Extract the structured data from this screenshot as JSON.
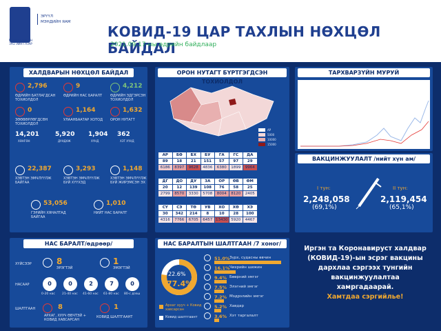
{
  "header": {
    "org1": "МОНГОЛ УЛСЫН",
    "org2": "ЗАСГИЙН ГАЗАР",
    "ministry1": "ЭРҮҮЛ",
    "ministry2": "МЭНДИЙН ЯАМ",
    "title": "КОВИД-19 ЦАР ТАХЛЫН НӨХЦӨЛ БАЙДАЛ",
    "subtitle": "2021.09.17-ны өдрийн байдлаар"
  },
  "infection": {
    "title": "ХАЛДВАРЫН НӨХЦӨЛ БАЙДАЛ",
    "stats": [
      {
        "value": "2,796",
        "label": "ӨДРИЙН БАТЛАГДСАН ТОХИОЛДОЛ",
        "color": "#f0a830"
      },
      {
        "value": "9",
        "label": "ӨДРИЙН НАС БАРАЛТ",
        "color": "#f0a830"
      },
      {
        "value": "4,212",
        "label": "ӨДРИЙН ЭДГЭРСЭН ТОХИОЛДОЛ",
        "color": "#7ec47a"
      },
      {
        "value": "0",
        "label": "ЗӨӨВӨРЛӨГДСӨН ТОХИОЛДОЛ",
        "color": "#f0a830"
      },
      {
        "value": "1,164",
        "label": "УЛААНБААТАР ХОТОД",
        "color": "#f0a830"
      },
      {
        "value": "1,632",
        "label": "ОРОН НУТАГТ",
        "color": "#f0a830"
      }
    ],
    "row2": [
      {
        "value": "14,201",
        "label": "ХӨНГӨН"
      },
      {
        "value": "5,920",
        "label": "ДУНДАЖ"
      },
      {
        "value": "1,904",
        "label": "ХҮНД"
      },
      {
        "value": "362",
        "label": "ХЭТ ХҮНД"
      }
    ],
    "stats2": [
      {
        "value": "22,387",
        "label": "ХЭВТЭН ЭМЧЛҮҮЛЖ БАЙГАА"
      },
      {
        "value": "3,293",
        "label": "ХЭВТЭН ЭМЧЛҮҮЛЖ БУЙ ХҮҮХЭД"
      },
      {
        "value": "1,148",
        "label": "ХЭВТЭН ЭМЧЛҮҮЛЖ БУЙ ЖИРЭМСЭН ЭХ"
      },
      {
        "value": "53,056",
        "label": "ГЭРИЙН ХЯНАЛТАД БАЙГАА"
      },
      {
        "value": "1,010",
        "label": "НИЙТ НАС БАРАЛТ"
      }
    ]
  },
  "map": {
    "title": "ОРОН НУТАГТ БҮРТГЭГДСЭН ТОХИОЛДОЛ",
    "legend": [
      "АР",
      "5000",
      "10000",
      "15000"
    ],
    "rows": [
      {
        "codes": [
          "АР",
          "БӨ",
          "БХ",
          "БУ",
          "ГА",
          "ГС",
          "ДА"
        ],
        "daily": [
          "89",
          "18",
          "21",
          "151",
          "57",
          "97",
          "29"
        ],
        "total": [
          "6186",
          "8397",
          "9628",
          "4836",
          "6380",
          "1899",
          "9964"
        ]
      },
      {
        "codes": [
          "ДГ",
          "ДО",
          "ДУ",
          "ЗА",
          "ОР",
          "ӨВ",
          "ӨМ"
        ],
        "daily": [
          "20",
          "12",
          "139",
          "108",
          "76",
          "58",
          "25"
        ],
        "total": [
          "2799",
          "8570",
          "3330",
          "5708",
          "8004",
          "8120",
          "2405"
        ]
      },
      {
        "codes": [
          "СҮ",
          "СЭ",
          "ТӨ",
          "УВ",
          "ХО",
          "ХӨ",
          "ХЭ"
        ],
        "daily": [
          "30",
          "342",
          "214",
          "8",
          "10",
          "28",
          "100"
        ],
        "total": [
          "4316",
          "7766",
          "6705",
          "6457",
          "13430",
          "5920",
          "4467"
        ]
      }
    ]
  },
  "curve": {
    "title": "ТАРХВАРЗҮЙН МУРУЙ"
  },
  "vaccine": {
    "title": "ВАКЦИНЖУУЛАЛТ /нийт хүн ам/",
    "dose1_label": "I тун:",
    "dose1_value": "2,248,058",
    "dose1_pct": "(69,1%)",
    "dose2_label": "II тун:",
    "dose2_value": "2,119,454",
    "dose2_pct": "(65,1%)"
  },
  "deaths": {
    "title": "НАС БАРАЛТ/өдрөөр/",
    "male_label": "ХҮЙСЭЭР",
    "male_value": "8",
    "male_text": "ЭРЭГТЭЙ",
    "female_value": "1",
    "female_text": "ЭМЭГТЭЙ",
    "age_label": "НАСААР",
    "ages": [
      {
        "value": "0",
        "label": "0-20 нас"
      },
      {
        "value": "0",
        "label": "21-40 нас"
      },
      {
        "value": "2",
        "label": "41-60 нас"
      },
      {
        "value": "7",
        "label": "61-80 нас"
      },
      {
        "value": "0",
        "label": "80-с дээш"
      }
    ],
    "cause_label": "ШАЛТГААН",
    "cause1_value": "8",
    "cause1_text": "АРХАГ, ХУУЧ ӨВЧТЭЙ + КОВИД ХАВСАРСАН",
    "cause2_value": "1",
    "cause2_text": "КОВИД ШАЛТГААНТ"
  },
  "causes": {
    "title": "НАС БАРАЛТЫН ШАЛТГААН /7 хоног/",
    "pct_covid": "22.6%",
    "pct_chronic": "77.4%",
    "legend1": "Архаг хууч + Ковид хавсарсан",
    "legend2": "Ковид шалтгаант",
    "items": [
      {
        "pct": "51.0%",
        "label": "Зүрх, судасны өвчин",
        "v": 51
      },
      {
        "pct": "16.1%",
        "label": "Чихрийн шижин",
        "v": 16.1
      },
      {
        "pct": "9.4%",
        "label": "Бөөрний эмгэг",
        "v": 9.4
      },
      {
        "pct": "7.5%",
        "label": "Элэгний эмгэг",
        "v": 7.5
      },
      {
        "pct": "7.2%",
        "label": "Мэдрэлийн эмгэг",
        "v": 7.2
      },
      {
        "pct": "5.2%",
        "label": "Хавдар",
        "v": 5.2
      },
      {
        "pct": "3.6%",
        "label": "Хэт таргалалт",
        "v": 3.6
      }
    ]
  },
  "message": {
    "l1": "Иргэн та Коронавируст халдвар",
    "l2": "(КОВИД-19)-ын эсрэг вакцины",
    "l3": "дархлаа сэргээх тунгийн",
    "l4": "вакцинжуулалтаа",
    "l5": "хамргадаарай.",
    "l6": "Хамтдаа сэргийлье!"
  }
}
